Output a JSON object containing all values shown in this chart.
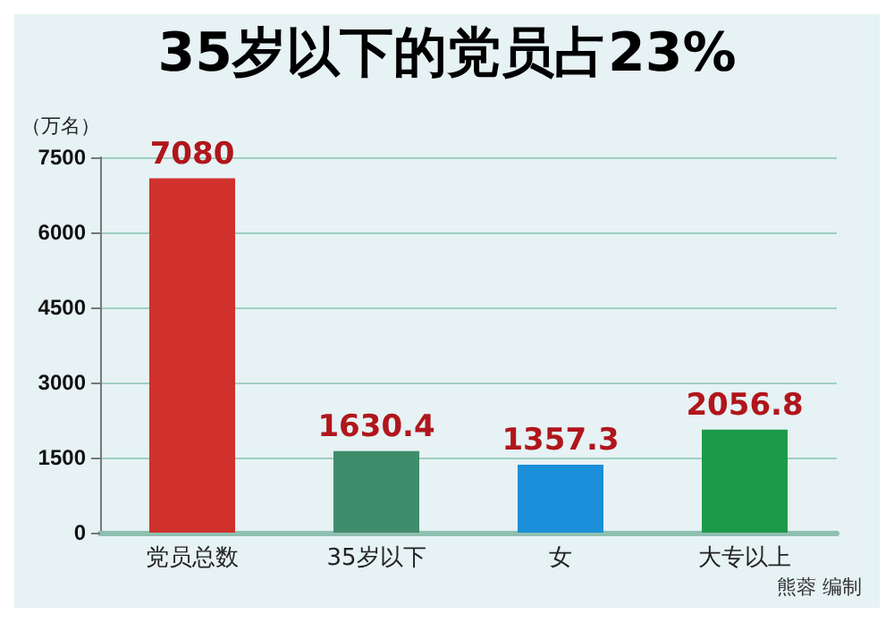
{
  "chart_data": {
    "type": "bar",
    "title": "35岁以下的党员占23%",
    "ylabel": "（万名）",
    "categories": [
      "党员总数",
      "35岁以下",
      "女",
      "大专以上"
    ],
    "values": [
      7080,
      1630.4,
      1357.3,
      2056.8
    ],
    "colors": [
      "#d0312d",
      "#3f8c6a",
      "#1b8fd9",
      "#1c9a48"
    ],
    "ylim": [
      0,
      7500
    ],
    "yticks": [
      0,
      1500,
      3000,
      4500,
      6000,
      7500
    ],
    "grid": "y",
    "data_labels": true,
    "annotations": [
      "熊蓉 编制"
    ]
  }
}
